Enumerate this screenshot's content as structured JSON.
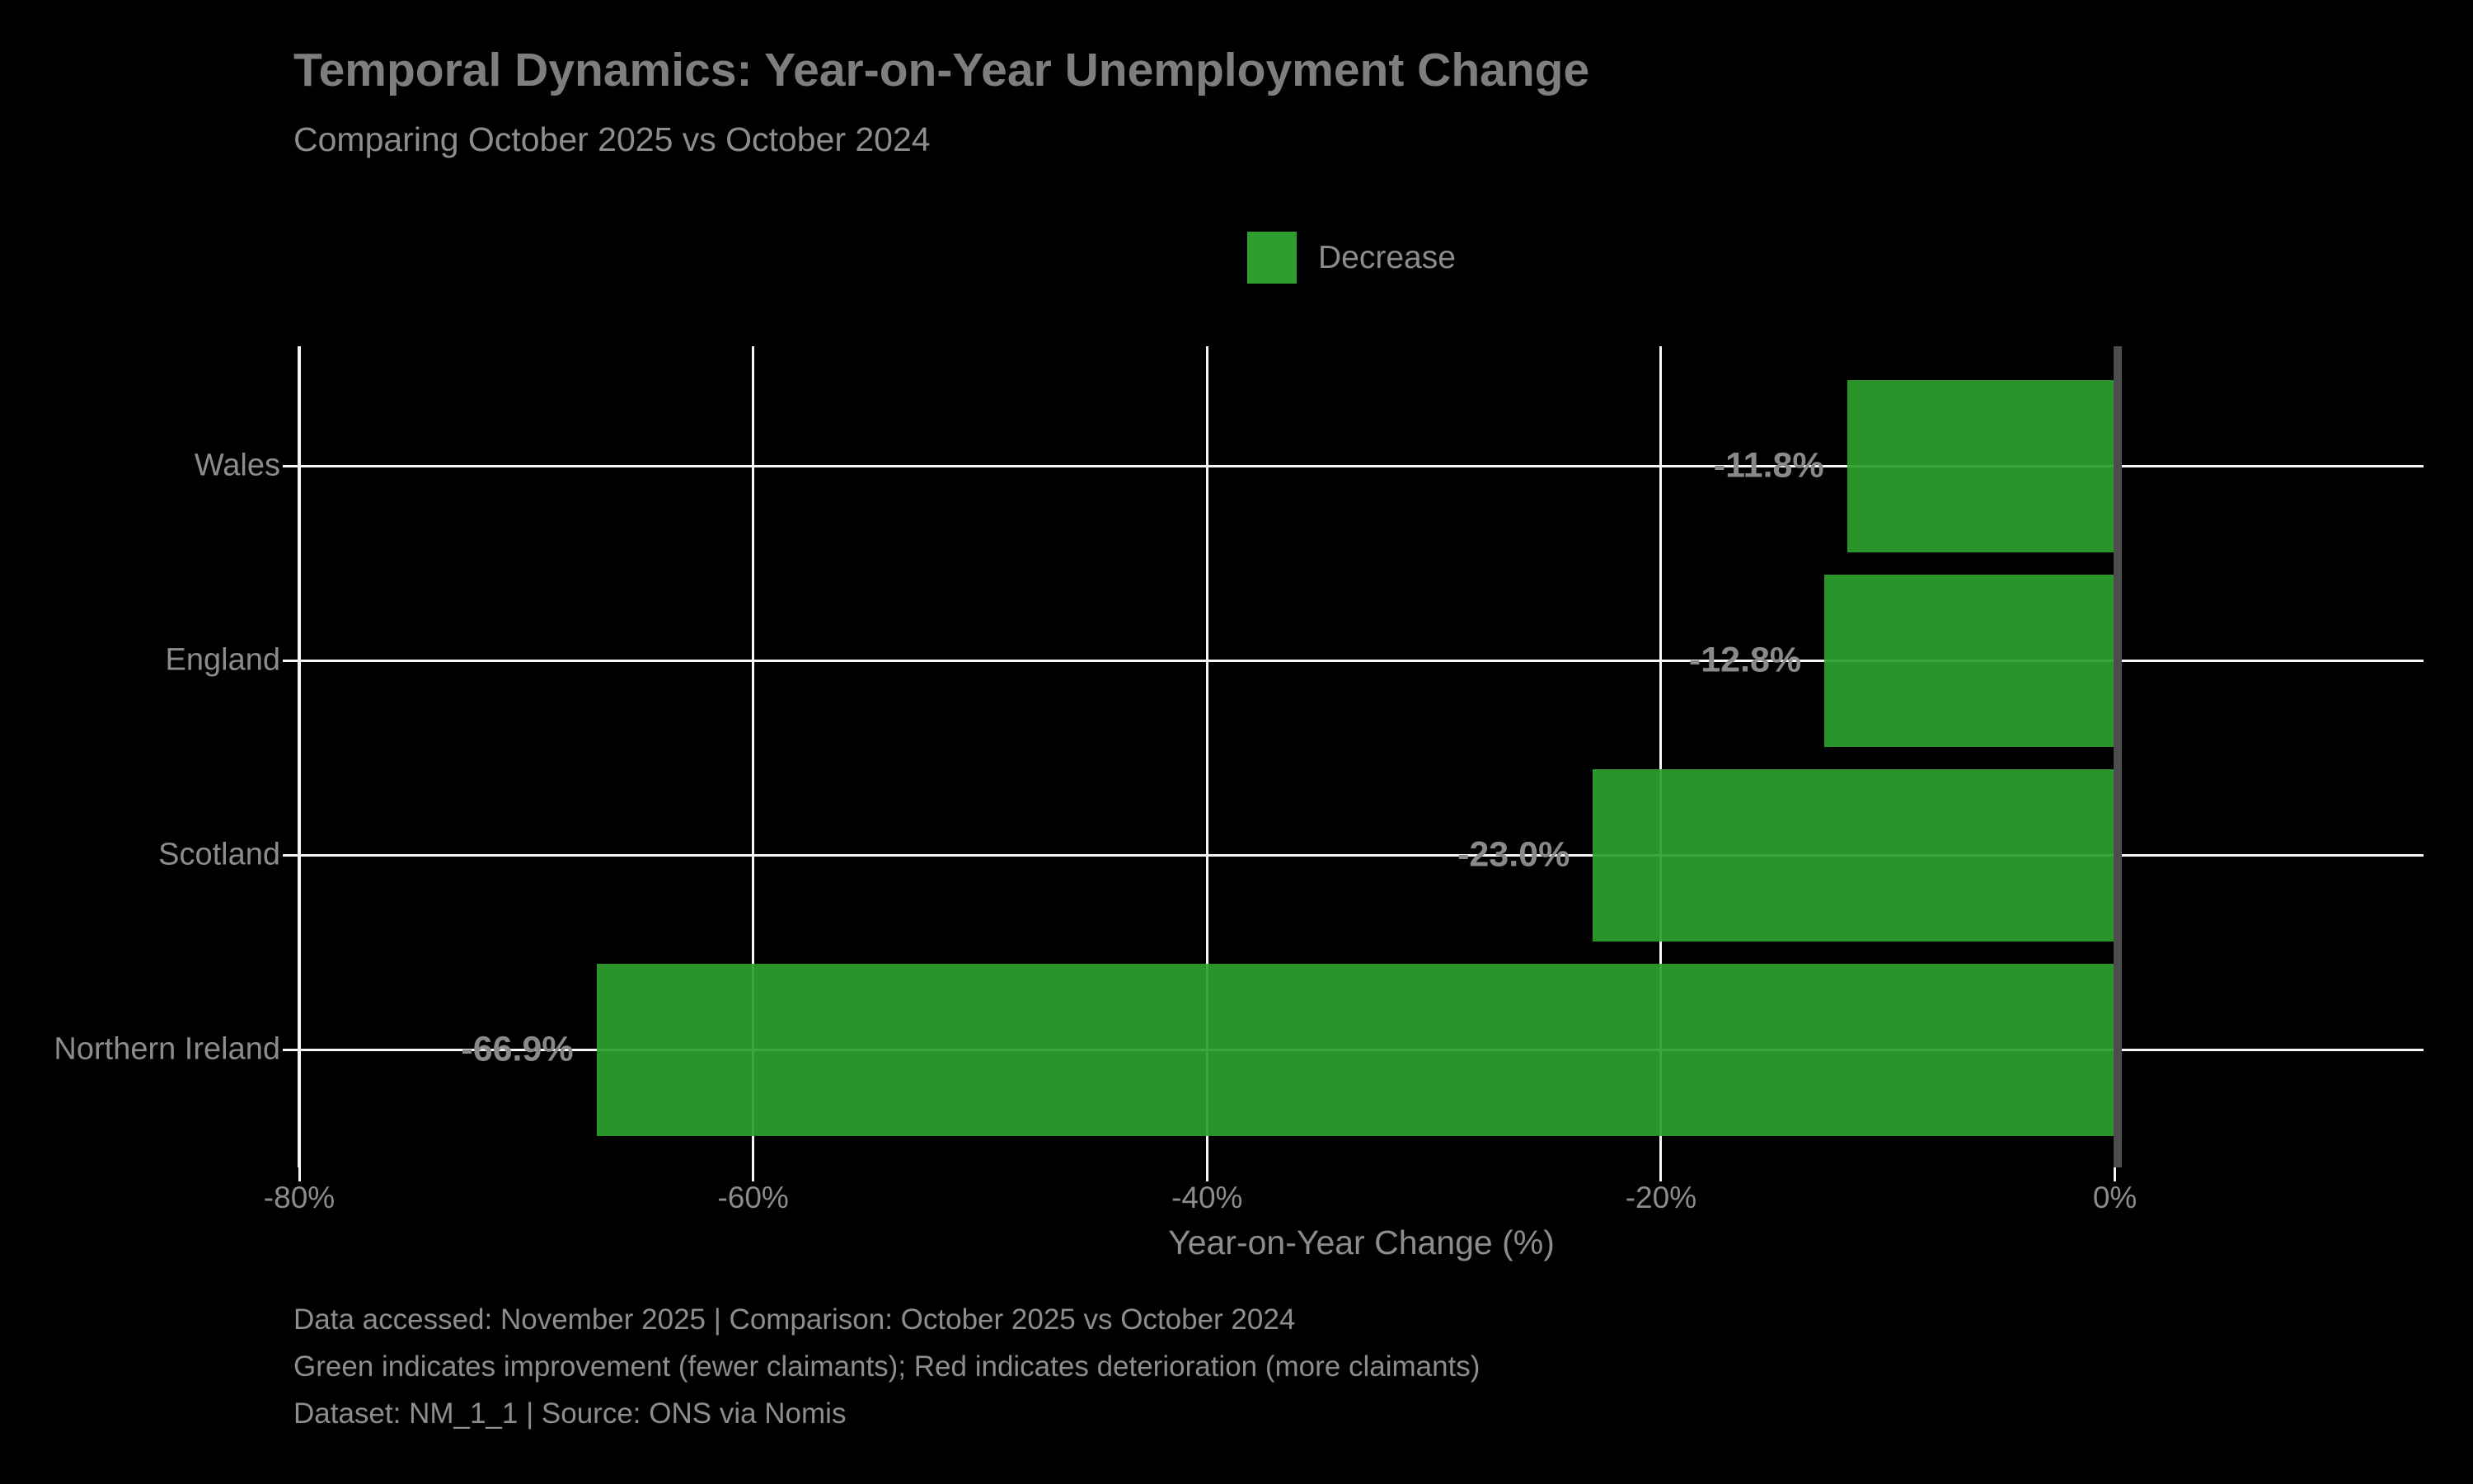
{
  "header": {
    "title": "Temporal Dynamics: Year-on-Year Unemployment Change",
    "subtitle": "Comparing October 2025 vs October 2024"
  },
  "legend": {
    "items": [
      {
        "label": "Decrease",
        "color": "#2d9e2d"
      }
    ]
  },
  "chart_data": {
    "type": "bar",
    "orientation": "horizontal",
    "title": "Temporal Dynamics: Year-on-Year Unemployment Change",
    "subtitle": "Comparing October 2025 vs October 2024",
    "categories": [
      "Wales",
      "England",
      "Scotland",
      "Northern Ireland"
    ],
    "values": [
      -11.8,
      -12.8,
      -23.0,
      -66.9
    ],
    "value_labels": [
      "-11.8%",
      "-12.8%",
      "-23.0%",
      "-66.9%"
    ],
    "bar_color": "#2d9e2d",
    "xlabel": "Year-on-Year Change (%)",
    "ylabel": "",
    "xlim": [
      -80,
      13.6
    ],
    "xticks": [
      -80,
      -60,
      -40,
      -20,
      0
    ],
    "xtick_labels": [
      "-80%",
      "-60%",
      "-40%",
      "-20%",
      "0%"
    ],
    "grid": true,
    "gridline_color": "#f5f5f5",
    "zero_line_color": "#4d4d4d",
    "background": "#000000",
    "legend_entries": [
      "Decrease"
    ],
    "legend_position": "top-center"
  },
  "footer": {
    "lines": [
      "Data accessed: November 2025 | Comparison: October 2025 vs October 2024",
      "Green indicates improvement (fewer claimants); Red indicates deterioration (more claimants)",
      "Dataset: NM_1_1 | Source: ONS via Nomis"
    ]
  }
}
